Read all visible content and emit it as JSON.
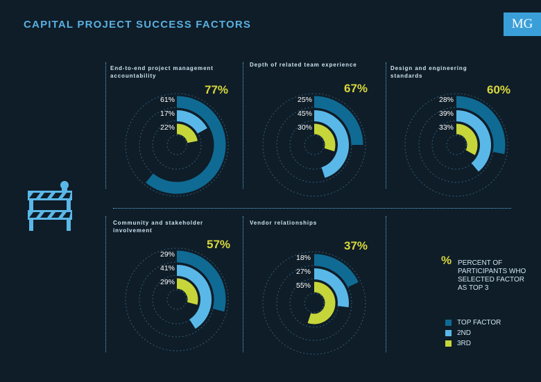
{
  "title": "CAPITAL PROJECT SUCCESS FACTORS",
  "logo": "MG",
  "colors": {
    "top": "#0f6b94",
    "second": "#5ab8e8",
    "third": "#c6d63a",
    "accent": "#d8d83c",
    "background": "#0f1d28"
  },
  "chart_data": {
    "type": "radial-bar",
    "series_names": [
      "TOP FACTOR",
      "2ND",
      "3RD"
    ],
    "factors": [
      {
        "label": "End-to-end project management accountability",
        "total": "77%",
        "top": "61%",
        "second": "17%",
        "third": "22%",
        "values": [
          61,
          17,
          22
        ]
      },
      {
        "label": "Depth of related team experience",
        "total": "67%",
        "top": "25%",
        "second": "45%",
        "third": "30%",
        "values": [
          25,
          45,
          30
        ]
      },
      {
        "label": "Design and engineering standards",
        "total": "60%",
        "top": "28%",
        "second": "39%",
        "third": "33%",
        "values": [
          28,
          39,
          33
        ]
      },
      {
        "label": "Community and stakeholder involvement",
        "total": "57%",
        "top": "29%",
        "second": "41%",
        "third": "29%",
        "values": [
          29,
          41,
          29
        ]
      },
      {
        "label": "Vendor relationships",
        "total": "37%",
        "top": "18%",
        "second": "27%",
        "third": "55%",
        "values": [
          18,
          27,
          55
        ]
      }
    ]
  },
  "legend": {
    "symbol": "%",
    "text": "PERCENT OF PARTICIPANTS WHO SELECTED FACTOR AS TOP 3",
    "items": [
      "TOP FACTOR",
      "2ND",
      "3RD"
    ]
  }
}
